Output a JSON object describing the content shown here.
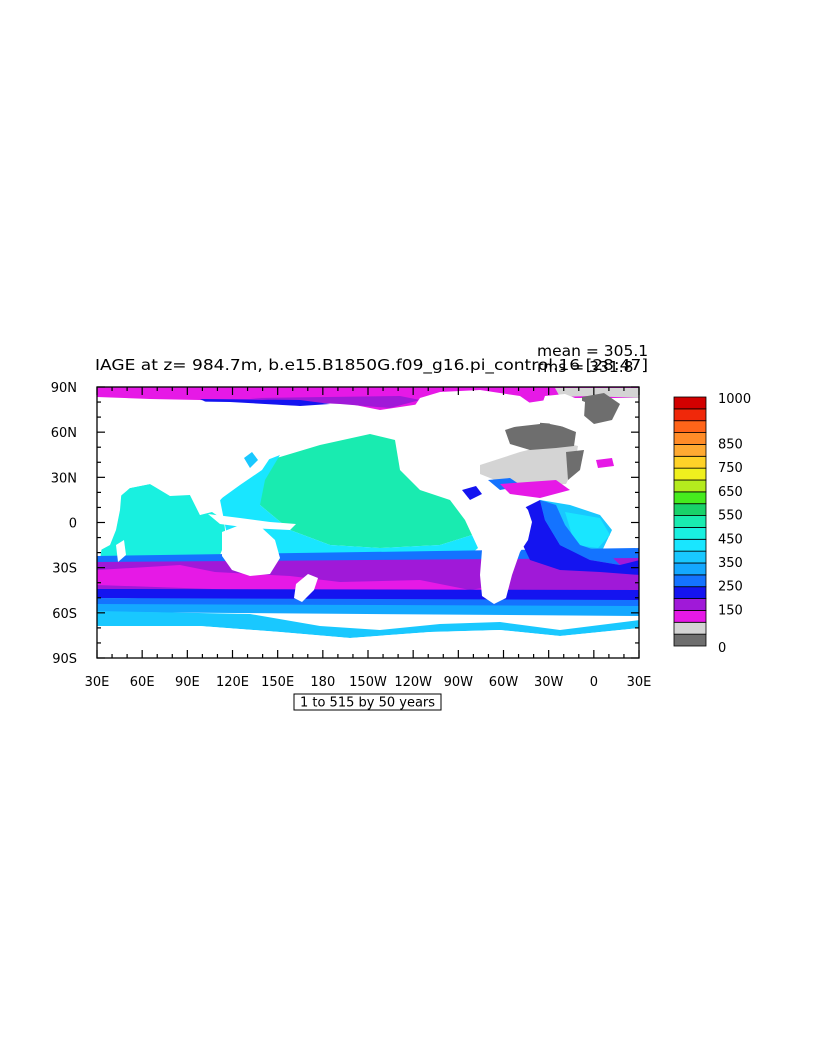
{
  "plot": {
    "title": "IAGE at z= 984.7m, b.e15.B1850G.f09_g16.pi_control.16 [28:47]",
    "mean_text": "mean = 305.1",
    "rms_text": "rms = 331.8",
    "subtitle_box": "1 to 515 by 50 years"
  },
  "chart_data": {
    "type": "heatmap",
    "variable": "IAGE",
    "depth_m": 984.7,
    "x_ticks": [
      "30E",
      "60E",
      "90E",
      "120E",
      "150E",
      "180",
      "150W",
      "120W",
      "90W",
      "60W",
      "30W",
      "0",
      "30E"
    ],
    "y_ticks": [
      "90N",
      "60N",
      "30N",
      "0",
      "30S",
      "60S",
      "90S"
    ],
    "xlim": [
      30,
      390
    ],
    "ylim": [
      -90,
      90
    ],
    "colorbar": {
      "labels": [
        "1000",
        "850",
        "750",
        "650",
        "550",
        "450",
        "350",
        "250",
        "150",
        "0"
      ],
      "levels": [
        0,
        50,
        100,
        150,
        200,
        250,
        300,
        350,
        400,
        450,
        500,
        550,
        600,
        650,
        700,
        750,
        800,
        850,
        900,
        950,
        1000
      ],
      "colors": [
        "#6e6e6e",
        "#d4d4d4",
        "#e619e6",
        "#a019d8",
        "#1414f0",
        "#1473ff",
        "#14a8ff",
        "#19c8ff",
        "#19e6ff",
        "#19f0e0",
        "#19ebb0",
        "#19d26a",
        "#46eb1e",
        "#b4eb1e",
        "#f0f01e",
        "#ffd228",
        "#ffaa32",
        "#ff8c28",
        "#ff6419",
        "#f0280a",
        "#d20000"
      ]
    },
    "mean": 305.1,
    "rms": 331.8
  }
}
